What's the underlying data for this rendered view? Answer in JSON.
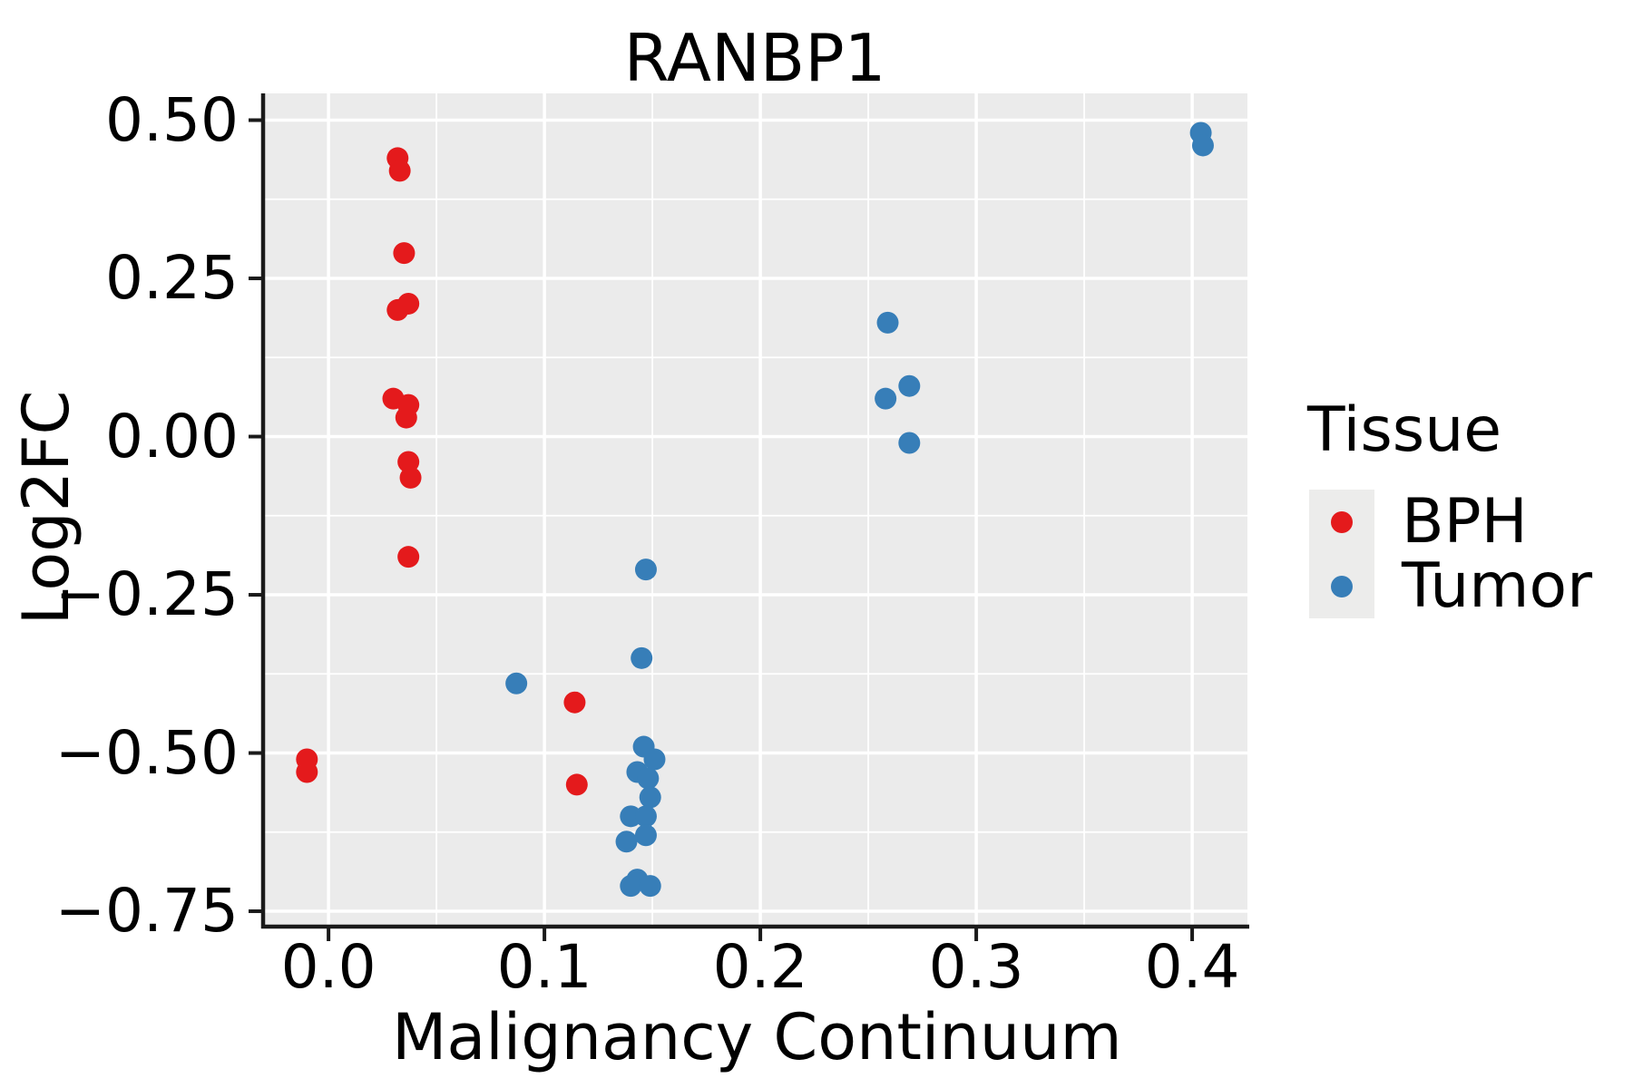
{
  "title": "RANBP1",
  "colors": {
    "bph": "#E41A1C",
    "tumor": "#377EB8",
    "panel_background": "#EBEBEB",
    "gridline": "#FFFFFF",
    "axis_line": "#1a1a1a",
    "text": "#000000",
    "figure_background": "#FFFFFF"
  },
  "legend": {
    "title": "Tissue",
    "entries": [
      {
        "label": "BPH",
        "color": "#E41A1C"
      },
      {
        "label": "Tumor",
        "color": "#377EB8"
      }
    ]
  },
  "chart_data": {
    "type": "scatter",
    "title": "RANBP1",
    "xlabel": "Malignancy Continuum",
    "ylabel": "Log2FC",
    "xlim": [
      -0.0303,
      0.4256
    ],
    "ylim": [
      -0.7743,
      0.5423
    ],
    "x_ticks": [
      0.0,
      0.1,
      0.2,
      0.3,
      0.4
    ],
    "x_tick_labels": [
      "0.0",
      "0.1",
      "0.2",
      "0.3",
      "0.4"
    ],
    "x_minor_ticks": [
      0.05,
      0.15,
      0.25,
      0.35
    ],
    "y_ticks": [
      0.5,
      0.25,
      0.0,
      -0.25,
      -0.5,
      -0.75
    ],
    "y_tick_labels": [
      "0.50",
      "0.25",
      "0.00",
      "−0.25",
      "−0.50",
      "−0.75"
    ],
    "y_minor_ticks": [
      0.375,
      0.125,
      -0.125,
      -0.375,
      -0.625
    ],
    "grid": "white major and minor gridlines on grey panel",
    "legend_position": "right",
    "legend_title": "Tissue",
    "series": [
      {
        "name": "BPH",
        "color": "#E41A1C",
        "points": [
          [
            -0.01,
            -0.51
          ],
          [
            -0.01,
            -0.53
          ],
          [
            0.032,
            0.44
          ],
          [
            0.033,
            0.42
          ],
          [
            0.035,
            0.29
          ],
          [
            0.032,
            0.2
          ],
          [
            0.037,
            0.21
          ],
          [
            0.03,
            0.06
          ],
          [
            0.037,
            0.05
          ],
          [
            0.036,
            0.03
          ],
          [
            0.037,
            -0.04
          ],
          [
            0.038,
            -0.065
          ],
          [
            0.037,
            -0.19
          ],
          [
            0.114,
            -0.42
          ],
          [
            0.115,
            -0.55
          ]
        ]
      },
      {
        "name": "Tumor",
        "color": "#377EB8",
        "points": [
          [
            0.087,
            -0.39
          ],
          [
            0.147,
            -0.21
          ],
          [
            0.145,
            -0.35
          ],
          [
            0.146,
            -0.49
          ],
          [
            0.151,
            -0.51
          ],
          [
            0.143,
            -0.53
          ],
          [
            0.148,
            -0.54
          ],
          [
            0.149,
            -0.57
          ],
          [
            0.14,
            -0.6
          ],
          [
            0.147,
            -0.6
          ],
          [
            0.147,
            -0.63
          ],
          [
            0.138,
            -0.64
          ],
          [
            0.143,
            -0.7
          ],
          [
            0.14,
            -0.71
          ],
          [
            0.149,
            -0.71
          ],
          [
            0.259,
            0.18
          ],
          [
            0.269,
            0.08
          ],
          [
            0.258,
            0.06
          ],
          [
            0.269,
            -0.01
          ],
          [
            0.404,
            0.48
          ],
          [
            0.405,
            0.46
          ]
        ]
      }
    ]
  }
}
